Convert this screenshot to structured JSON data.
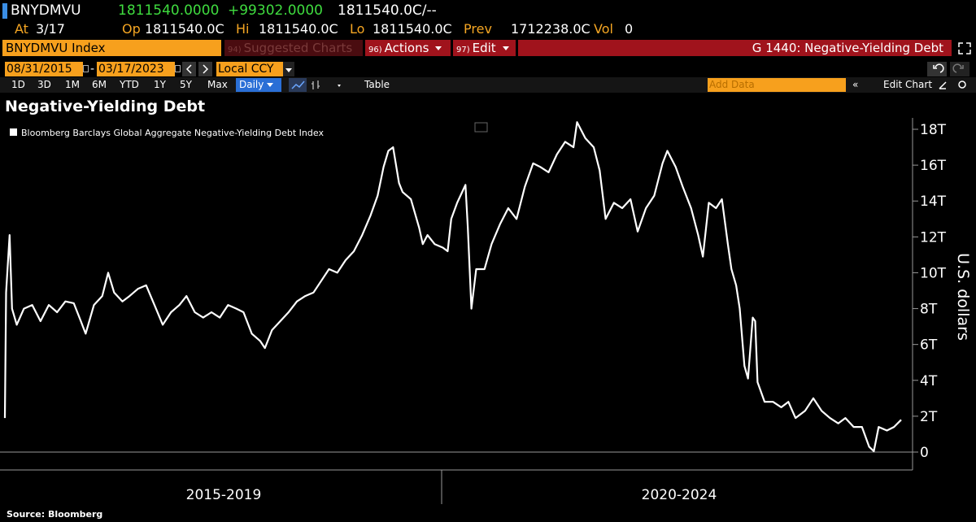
{
  "header": {
    "ticker": "BNYDMVU",
    "last": "1811540.0000",
    "change": "+99302.0000",
    "bid_ask": "1811540.0C/--",
    "at_label": "At",
    "at": "3/17",
    "op_label": "Op",
    "op": "1811540.0C",
    "hi_label": "Hi",
    "hi": "1811540.0C",
    "lo_label": "Lo",
    "lo": "1811540.0C",
    "prev_label": "Prev",
    "prev": "1712238.0C",
    "vol_label": "Vol",
    "vol": "0"
  },
  "toolbar": {
    "security": "BNYDMVU Index",
    "suggested": {
      "num": "94)",
      "label": "Suggested Charts"
    },
    "actions": {
      "num": "96)",
      "label": "Actions"
    },
    "edit": {
      "num": "97)",
      "label": "Edit"
    },
    "function": "G 1440: Negative-Yielding Debt",
    "start_date": "08/31/2015",
    "date_separator": "-",
    "end_date": "03/17/2023",
    "currency": "Local CCY",
    "periods": [
      "1D",
      "3D",
      "1M",
      "6M",
      "YTD",
      "1Y",
      "5Y",
      "Max"
    ],
    "frequency": "Daily",
    "table": "Table",
    "add_data": "Add Data",
    "edit_chart": "Edit Chart"
  },
  "chart_data": {
    "type": "line",
    "title": "Negative-Yielding Debt",
    "y_label": "U.S. dollars",
    "x_period_labels": [
      "2015-2019",
      "2020-2024"
    ],
    "xlim": [
      2015.66,
      2023.21
    ],
    "ylim": [
      0,
      18
    ],
    "yticks": [
      0,
      {
        "value": 2,
        "label": "2T"
      },
      {
        "value": 4,
        "label": "4T"
      },
      {
        "value": 6,
        "label": "6T"
      },
      {
        "value": 8,
        "label": "8T"
      },
      {
        "value": 10,
        "label": "10T"
      },
      {
        "value": 12,
        "label": "12T"
      },
      {
        "value": 14,
        "label": "14T"
      },
      {
        "value": 16,
        "label": "16T"
      },
      {
        "value": 18,
        "label": "18T"
      }
    ],
    "x": [
      2015.66,
      2015.67,
      2015.7,
      2015.72,
      2015.76,
      2015.82,
      2015.89,
      2015.96,
      2016.03,
      2016.1,
      2016.17,
      2016.24,
      2016.3,
      2016.34,
      2016.41,
      2016.48,
      2016.53,
      2016.58,
      2016.65,
      2016.71,
      2016.78,
      2016.85,
      2016.92,
      2016.99,
      2017.06,
      2017.13,
      2017.19,
      2017.26,
      2017.33,
      2017.4,
      2017.47,
      2017.54,
      2017.61,
      2017.67,
      2017.74,
      2017.81,
      2017.85,
      2017.91,
      2017.98,
      2018.05,
      2018.12,
      2018.19,
      2018.26,
      2018.33,
      2018.39,
      2018.46,
      2018.53,
      2018.6,
      2018.67,
      2018.74,
      2018.8,
      2018.85,
      2018.89,
      2018.93,
      2018.98,
      2019.01,
      2019.08,
      2019.15,
      2019.18,
      2019.22,
      2019.28,
      2019.35,
      2019.39,
      2019.42,
      2019.47,
      2019.54,
      2019.56,
      2019.59,
      2019.63,
      2019.7,
      2019.76,
      2019.83,
      2019.9,
      2019.97,
      2020.04,
      2020.11,
      2020.17,
      2020.24,
      2020.31,
      2020.38,
      2020.45,
      2020.48,
      2020.55,
      2020.62,
      2020.67,
      2020.72,
      2020.79,
      2020.86,
      2020.93,
      2020.99,
      2021.06,
      2021.13,
      2021.2,
      2021.24,
      2021.31,
      2021.37,
      2021.44,
      2021.5,
      2021.54,
      2021.59,
      2021.65,
      2021.7,
      2021.75,
      2021.78,
      2021.82,
      2021.85,
      2021.89,
      2021.92,
      2021.96,
      2021.98,
      2022.0,
      2022.06,
      2022.13,
      2022.2,
      2022.26,
      2022.32,
      2022.4,
      2022.47,
      2022.54,
      2022.61,
      2022.68,
      2022.74,
      2022.81,
      2022.88,
      2022.94,
      2022.98,
      2023.02,
      2023.09,
      2023.15,
      2023.21
    ],
    "series": [
      {
        "name": "Bloomberg Barclays Global Aggregate Negative-Yielding Debt Index",
        "color": "#ffffff",
        "values": [
          1.9,
          8.9,
          12.1,
          8.0,
          7.1,
          8.0,
          8.2,
          7.3,
          8.2,
          7.8,
          8.4,
          8.3,
          7.3,
          6.6,
          8.2,
          8.7,
          10.0,
          8.9,
          8.4,
          8.7,
          9.1,
          9.3,
          8.2,
          7.1,
          7.8,
          8.2,
          8.7,
          7.8,
          7.5,
          7.8,
          7.5,
          8.2,
          8.0,
          7.8,
          6.6,
          6.2,
          5.8,
          6.8,
          7.3,
          7.8,
          8.4,
          8.7,
          8.9,
          9.6,
          10.2,
          10.0,
          10.7,
          11.2,
          12.1,
          13.2,
          14.3,
          15.9,
          16.8,
          17.0,
          15.0,
          14.5,
          14.1,
          12.5,
          11.6,
          12.1,
          11.6,
          11.4,
          11.2,
          13.0,
          13.9,
          14.9,
          12.5,
          8.0,
          10.2,
          10.2,
          11.6,
          12.7,
          13.6,
          13.0,
          14.8,
          16.1,
          15.9,
          15.6,
          16.6,
          17.3,
          17.0,
          18.4,
          17.5,
          17.0,
          15.7,
          13.0,
          13.9,
          13.6,
          14.1,
          12.3,
          13.6,
          14.3,
          16.1,
          16.8,
          15.9,
          14.8,
          13.6,
          12.1,
          10.9,
          13.9,
          13.6,
          14.1,
          11.6,
          10.2,
          9.3,
          8.0,
          4.8,
          4.1,
          7.5,
          7.3,
          3.9,
          2.8,
          2.8,
          2.5,
          2.8,
          1.9,
          2.3,
          3.0,
          2.3,
          1.9,
          1.6,
          1.9,
          1.4,
          1.4,
          0.3,
          0.05,
          1.4,
          1.2,
          1.4,
          1.8
        ]
      }
    ]
  },
  "source": "Source: Bloomberg"
}
